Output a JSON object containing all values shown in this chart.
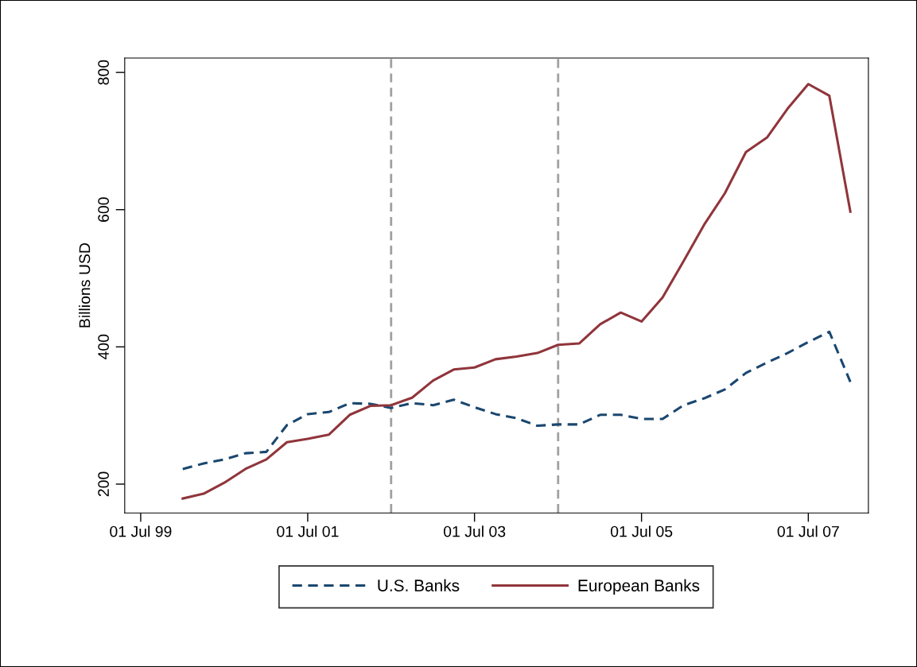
{
  "chart_data": {
    "type": "line",
    "ylabel": "Billions USD",
    "x": [
      "2000-01-01",
      "2000-04-01",
      "2000-07-01",
      "2000-10-01",
      "2001-01-01",
      "2001-04-01",
      "2001-07-01",
      "2001-10-01",
      "2002-01-01",
      "2002-04-01",
      "2002-07-01",
      "2002-10-01",
      "2003-01-01",
      "2003-04-01",
      "2003-07-01",
      "2003-10-01",
      "2004-01-01",
      "2004-04-01",
      "2004-07-01",
      "2004-10-01",
      "2005-01-01",
      "2005-04-01",
      "2005-07-01",
      "2005-10-01",
      "2006-01-01",
      "2006-04-01",
      "2006-07-01",
      "2006-10-01",
      "2007-01-01",
      "2007-04-01",
      "2007-07-01",
      "2007-10-01",
      "2008-01-01"
    ],
    "series": [
      {
        "name": "U.S. Banks",
        "color": "#1a476f",
        "line_style": "dashed",
        "values": [
          222,
          230,
          236,
          245,
          247,
          286,
          302,
          305,
          318,
          317,
          311,
          318,
          315,
          323,
          312,
          302,
          296,
          285,
          287,
          287,
          301,
          301,
          295,
          295,
          315,
          325,
          338,
          362,
          377,
          391,
          407,
          422,
          349
        ]
      },
      {
        "name": "European Banks",
        "color": "#90353b",
        "line_style": "solid",
        "values": [
          179,
          186,
          202,
          222,
          236,
          261,
          266,
          272,
          301,
          314,
          315,
          326,
          351,
          367,
          370,
          382,
          386,
          391,
          403,
          405,
          433,
          450,
          437,
          472,
          525,
          578,
          624,
          684,
          705,
          747,
          783,
          766,
          597
        ]
      }
    ],
    "xlim": [
      "1999-04-22",
      "2008-03-20"
    ],
    "xticks": [
      {
        "value": "1999-07-01",
        "label": "01 Jul 99"
      },
      {
        "value": "2001-07-01",
        "label": "01 Jul 01"
      },
      {
        "value": "2003-07-01",
        "label": "01 Jul 03"
      },
      {
        "value": "2005-07-01",
        "label": "01 Jul 05"
      },
      {
        "value": "2007-07-01",
        "label": "01 Jul 07"
      }
    ],
    "ylim": [
      158,
      821
    ],
    "yticks": [
      200,
      400,
      600,
      800
    ],
    "ref_lines": [
      {
        "axis": "x",
        "value": "2002-07-01",
        "color": "#a0a0a0",
        "line_style": "dashed"
      },
      {
        "axis": "x",
        "value": "2004-07-01",
        "color": "#a0a0a0",
        "line_style": "dashed"
      }
    ],
    "grid": false,
    "legend": "bottom",
    "marker": "none"
  }
}
